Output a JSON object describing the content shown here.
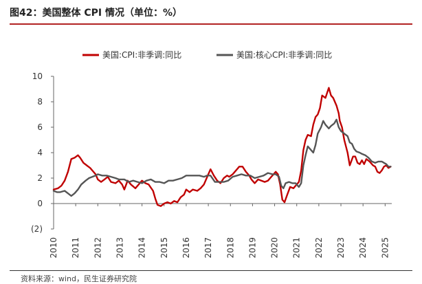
{
  "header": {
    "title": "图42：美国整体 CPI 情况（单位：%）"
  },
  "footer": {
    "source": "资料来源：wind，民生证券研究院"
  },
  "colors": {
    "accent": "#b22222",
    "series1": "#c00000",
    "series2": "#555555"
  },
  "chart_data": {
    "type": "line",
    "title": "",
    "xlabel": "",
    "ylabel": "",
    "ylim": [
      -2,
      10
    ],
    "xlim": [
      2010,
      2025.3
    ],
    "yticks": [
      {
        "value": 10,
        "label": "10"
      },
      {
        "value": 8,
        "label": "8"
      },
      {
        "value": 6,
        "label": "6"
      },
      {
        "value": 4,
        "label": "4"
      },
      {
        "value": 2,
        "label": "2"
      },
      {
        "value": 0,
        "label": "0"
      },
      {
        "value": -2,
        "label": "(2)"
      }
    ],
    "xticks": [
      "2010",
      "2011",
      "2012",
      "2013",
      "2014",
      "2015",
      "2016",
      "2017",
      "2018",
      "2019",
      "2020",
      "2021",
      "2022",
      "2023",
      "2024",
      "2025"
    ],
    "legend_position": "top",
    "series": [
      {
        "name": "美国:CPI:非季调:同比",
        "color": "#c00000",
        "points": [
          [
            2010.0,
            1.1
          ],
          [
            2010.2,
            1.2
          ],
          [
            2010.35,
            1.4
          ],
          [
            2010.5,
            1.8
          ],
          [
            2010.65,
            2.5
          ],
          [
            2010.8,
            3.5
          ],
          [
            2010.95,
            3.6
          ],
          [
            2011.1,
            3.8
          ],
          [
            2011.2,
            3.6
          ],
          [
            2011.35,
            3.2
          ],
          [
            2011.5,
            3.0
          ],
          [
            2011.65,
            2.8
          ],
          [
            2011.75,
            2.6
          ],
          [
            2011.9,
            2.3
          ],
          [
            2012.0,
            1.9
          ],
          [
            2012.15,
            1.7
          ],
          [
            2012.3,
            1.9
          ],
          [
            2012.45,
            2.1
          ],
          [
            2012.6,
            1.7
          ],
          [
            2012.8,
            1.6
          ],
          [
            2012.95,
            1.8
          ],
          [
            2013.1,
            1.5
          ],
          [
            2013.2,
            1.1
          ],
          [
            2013.35,
            1.8
          ],
          [
            2013.5,
            1.5
          ],
          [
            2013.7,
            1.2
          ],
          [
            2013.9,
            1.6
          ],
          [
            2014.0,
            1.8
          ],
          [
            2014.15,
            1.6
          ],
          [
            2014.3,
            1.5
          ],
          [
            2014.5,
            1.0
          ],
          [
            2014.6,
            0.4
          ],
          [
            2014.7,
            -0.1
          ],
          [
            2014.85,
            -0.2
          ],
          [
            2015.0,
            0.0
          ],
          [
            2015.15,
            0.1
          ],
          [
            2015.3,
            0.0
          ],
          [
            2015.45,
            0.2
          ],
          [
            2015.6,
            0.1
          ],
          [
            2015.75,
            0.5
          ],
          [
            2015.9,
            0.7
          ],
          [
            2016.0,
            1.1
          ],
          [
            2016.15,
            0.9
          ],
          [
            2016.3,
            1.1
          ],
          [
            2016.5,
            1.0
          ],
          [
            2016.65,
            1.2
          ],
          [
            2016.8,
            1.5
          ],
          [
            2016.95,
            2.1
          ],
          [
            2017.1,
            2.7
          ],
          [
            2017.25,
            2.2
          ],
          [
            2017.4,
            1.8
          ],
          [
            2017.55,
            1.6
          ],
          [
            2017.7,
            2.0
          ],
          [
            2017.85,
            2.2
          ],
          [
            2017.95,
            2.1
          ],
          [
            2018.1,
            2.3
          ],
          [
            2018.25,
            2.6
          ],
          [
            2018.4,
            2.9
          ],
          [
            2018.55,
            2.9
          ],
          [
            2018.7,
            2.5
          ],
          [
            2018.85,
            2.2
          ],
          [
            2018.95,
            1.9
          ],
          [
            2019.1,
            1.6
          ],
          [
            2019.25,
            1.9
          ],
          [
            2019.4,
            1.8
          ],
          [
            2019.55,
            1.7
          ],
          [
            2019.7,
            1.8
          ],
          [
            2019.85,
            2.1
          ],
          [
            2019.95,
            2.3
          ],
          [
            2020.05,
            2.5
          ],
          [
            2020.15,
            2.3
          ],
          [
            2020.25,
            1.5
          ],
          [
            2020.35,
            0.3
          ],
          [
            2020.45,
            0.1
          ],
          [
            2020.55,
            0.6
          ],
          [
            2020.7,
            1.3
          ],
          [
            2020.85,
            1.2
          ],
          [
            2020.95,
            1.4
          ],
          [
            2021.1,
            1.7
          ],
          [
            2021.2,
            2.6
          ],
          [
            2021.3,
            4.2
          ],
          [
            2021.4,
            5.0
          ],
          [
            2021.5,
            5.4
          ],
          [
            2021.65,
            5.3
          ],
          [
            2021.75,
            6.2
          ],
          [
            2021.85,
            6.8
          ],
          [
            2021.95,
            7.0
          ],
          [
            2022.05,
            7.5
          ],
          [
            2022.15,
            8.5
          ],
          [
            2022.3,
            8.3
          ],
          [
            2022.45,
            9.1
          ],
          [
            2022.55,
            8.5
          ],
          [
            2022.65,
            8.3
          ],
          [
            2022.8,
            7.7
          ],
          [
            2022.9,
            7.1
          ],
          [
            2022.95,
            6.5
          ],
          [
            2023.05,
            6.0
          ],
          [
            2023.15,
            5.0
          ],
          [
            2023.3,
            4.0
          ],
          [
            2023.4,
            3.0
          ],
          [
            2023.55,
            3.7
          ],
          [
            2023.65,
            3.7
          ],
          [
            2023.75,
            3.2
          ],
          [
            2023.85,
            3.1
          ],
          [
            2023.95,
            3.4
          ],
          [
            2024.05,
            3.1
          ],
          [
            2024.15,
            3.5
          ],
          [
            2024.3,
            3.3
          ],
          [
            2024.45,
            3.0
          ],
          [
            2024.55,
            2.9
          ],
          [
            2024.65,
            2.5
          ],
          [
            2024.75,
            2.4
          ],
          [
            2024.85,
            2.6
          ],
          [
            2024.95,
            2.9
          ],
          [
            2025.05,
            3.0
          ],
          [
            2025.15,
            2.8
          ],
          [
            2025.25,
            2.9
          ]
        ]
      },
      {
        "name": "美国:核心CPI:非季调:同比",
        "color": "#555555",
        "points": [
          [
            2010.0,
            1.0
          ],
          [
            2010.15,
            0.9
          ],
          [
            2010.3,
            0.9
          ],
          [
            2010.5,
            1.0
          ],
          [
            2010.65,
            0.8
          ],
          [
            2010.8,
            0.6
          ],
          [
            2010.95,
            0.8
          ],
          [
            2011.1,
            1.1
          ],
          [
            2011.25,
            1.5
          ],
          [
            2011.45,
            1.8
          ],
          [
            2011.6,
            2.0
          ],
          [
            2011.75,
            2.1
          ],
          [
            2011.9,
            2.2
          ],
          [
            2012.0,
            2.3
          ],
          [
            2012.2,
            2.2
          ],
          [
            2012.4,
            2.2
          ],
          [
            2012.6,
            2.1
          ],
          [
            2012.8,
            2.0
          ],
          [
            2012.95,
            1.9
          ],
          [
            2013.2,
            1.9
          ],
          [
            2013.4,
            1.7
          ],
          [
            2013.6,
            1.8
          ],
          [
            2013.8,
            1.7
          ],
          [
            2014.0,
            1.6
          ],
          [
            2014.2,
            1.8
          ],
          [
            2014.4,
            1.9
          ],
          [
            2014.6,
            1.7
          ],
          [
            2014.8,
            1.7
          ],
          [
            2015.0,
            1.6
          ],
          [
            2015.2,
            1.8
          ],
          [
            2015.4,
            1.8
          ],
          [
            2015.6,
            1.9
          ],
          [
            2015.8,
            2.0
          ],
          [
            2016.0,
            2.2
          ],
          [
            2016.2,
            2.2
          ],
          [
            2016.4,
            2.2
          ],
          [
            2016.6,
            2.2
          ],
          [
            2016.8,
            2.1
          ],
          [
            2016.95,
            2.2
          ],
          [
            2017.1,
            2.2
          ],
          [
            2017.3,
            1.7
          ],
          [
            2017.5,
            1.7
          ],
          [
            2017.7,
            1.7
          ],
          [
            2017.9,
            1.8
          ],
          [
            2018.1,
            2.1
          ],
          [
            2018.3,
            2.2
          ],
          [
            2018.5,
            2.3
          ],
          [
            2018.7,
            2.2
          ],
          [
            2018.9,
            2.2
          ],
          [
            2019.1,
            2.0
          ],
          [
            2019.3,
            2.1
          ],
          [
            2019.5,
            2.2
          ],
          [
            2019.7,
            2.4
          ],
          [
            2019.9,
            2.3
          ],
          [
            2020.05,
            2.3
          ],
          [
            2020.2,
            2.1
          ],
          [
            2020.3,
            1.4
          ],
          [
            2020.4,
            1.2
          ],
          [
            2020.5,
            1.6
          ],
          [
            2020.65,
            1.7
          ],
          [
            2020.8,
            1.6
          ],
          [
            2020.95,
            1.6
          ],
          [
            2021.1,
            1.3
          ],
          [
            2021.2,
            1.6
          ],
          [
            2021.3,
            3.0
          ],
          [
            2021.4,
            3.8
          ],
          [
            2021.5,
            4.5
          ],
          [
            2021.6,
            4.3
          ],
          [
            2021.75,
            4.0
          ],
          [
            2021.85,
            4.6
          ],
          [
            2021.95,
            5.5
          ],
          [
            2022.1,
            6.0
          ],
          [
            2022.2,
            6.5
          ],
          [
            2022.3,
            6.2
          ],
          [
            2022.45,
            5.9
          ],
          [
            2022.55,
            6.1
          ],
          [
            2022.7,
            6.3
          ],
          [
            2022.8,
            6.6
          ],
          [
            2022.9,
            6.0
          ],
          [
            2023.0,
            5.7
          ],
          [
            2023.15,
            5.5
          ],
          [
            2023.3,
            5.3
          ],
          [
            2023.4,
            4.8
          ],
          [
            2023.5,
            4.7
          ],
          [
            2023.6,
            4.3
          ],
          [
            2023.7,
            4.1
          ],
          [
            2023.85,
            4.0
          ],
          [
            2023.95,
            3.9
          ],
          [
            2024.1,
            3.8
          ],
          [
            2024.25,
            3.6
          ],
          [
            2024.4,
            3.3
          ],
          [
            2024.55,
            3.2
          ],
          [
            2024.7,
            3.3
          ],
          [
            2024.85,
            3.3
          ],
          [
            2024.95,
            3.2
          ],
          [
            2025.05,
            3.1
          ],
          [
            2025.15,
            2.9
          ],
          [
            2025.25,
            2.9
          ]
        ]
      }
    ]
  }
}
